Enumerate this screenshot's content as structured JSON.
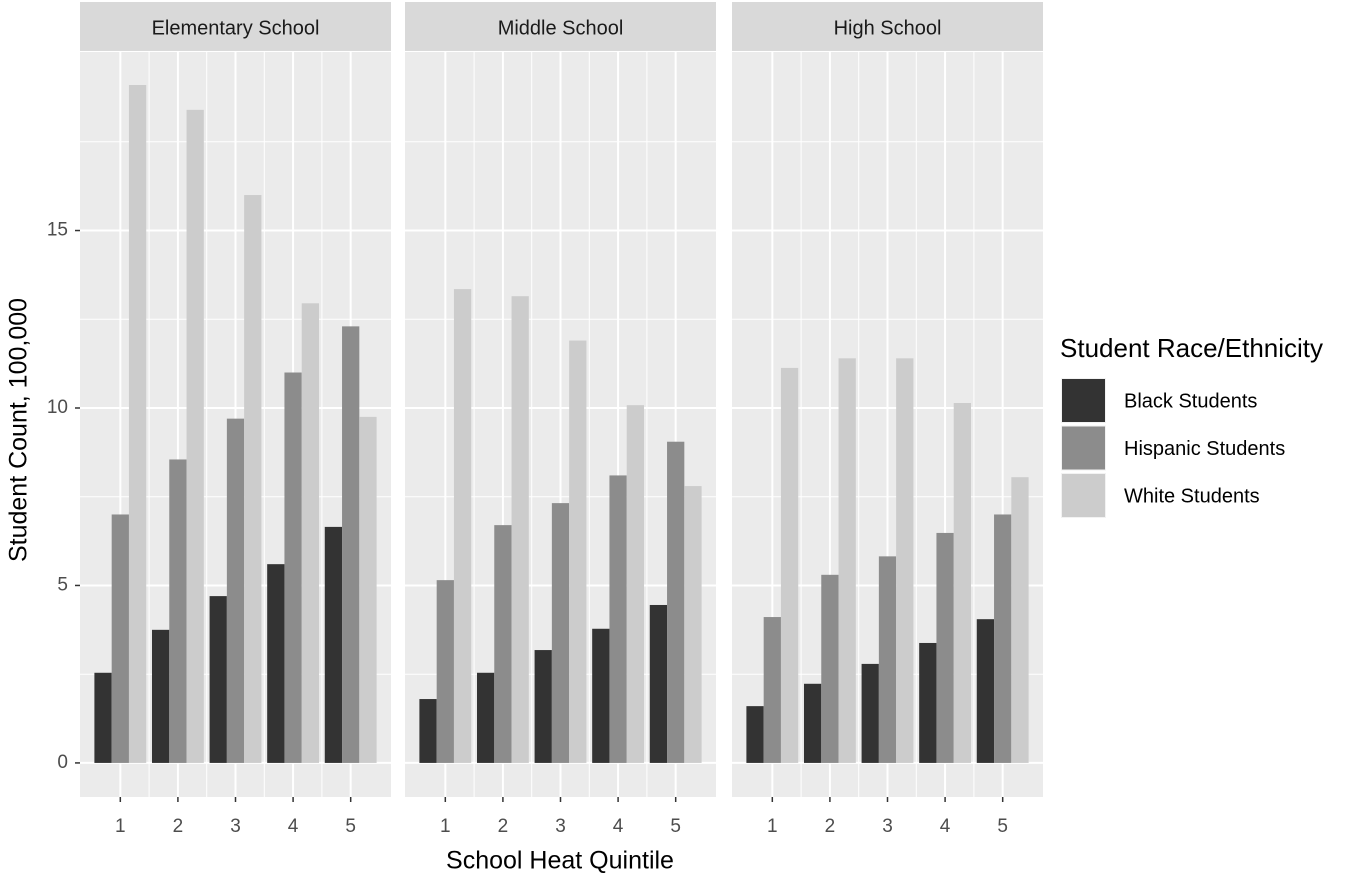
{
  "chart_data": {
    "type": "bar",
    "x_label": "School Heat Quintile",
    "y_label": "Student Count, 100,000",
    "legend_title": "Student Race/Ethnicity",
    "categories": [
      "1",
      "2",
      "3",
      "4",
      "5"
    ],
    "series": [
      {
        "name": "Black Students",
        "color": "#333333"
      },
      {
        "name": "Hispanic Students",
        "color": "#8c8c8c"
      },
      {
        "name": "White Students",
        "color": "#cccccc"
      }
    ],
    "facets": [
      {
        "title": "Elementary School",
        "values": [
          [
            2.54,
            3.75,
            4.7,
            5.6,
            6.65
          ],
          [
            7.0,
            8.55,
            9.7,
            11.0,
            12.3
          ],
          [
            19.1,
            18.4,
            16.0,
            12.95,
            9.75
          ]
        ]
      },
      {
        "title": "Middle School",
        "values": [
          [
            1.8,
            2.54,
            3.18,
            3.78,
            4.45
          ],
          [
            5.15,
            6.7,
            7.32,
            8.1,
            9.05
          ],
          [
            13.35,
            13.15,
            11.9,
            10.08,
            7.8
          ]
        ]
      },
      {
        "title": "High School",
        "values": [
          [
            1.6,
            2.23,
            2.79,
            3.38,
            4.05
          ],
          [
            4.11,
            5.3,
            5.82,
            6.48,
            7.0
          ],
          [
            11.13,
            11.4,
            11.4,
            10.14,
            8.05
          ]
        ]
      }
    ],
    "ylim": [
      -0.96,
      20.03
    ],
    "yticks": [
      0,
      5,
      10,
      15
    ],
    "grid": true
  }
}
